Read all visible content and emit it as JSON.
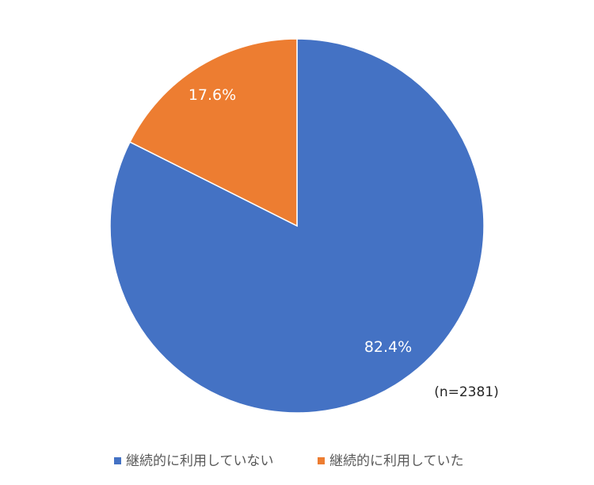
{
  "chart_data": {
    "type": "pie",
    "categories": [
      "継続的に利用していない",
      "継続的に利用していた"
    ],
    "values": [
      82.4,
      17.6
    ],
    "data_labels": [
      "82.4%",
      "17.6%"
    ],
    "colors": [
      "#4472c4",
      "#ed7d31"
    ],
    "start": "12 o'clock, clockwise",
    "annotation": "(n=2381)",
    "legend_position": "bottom"
  }
}
